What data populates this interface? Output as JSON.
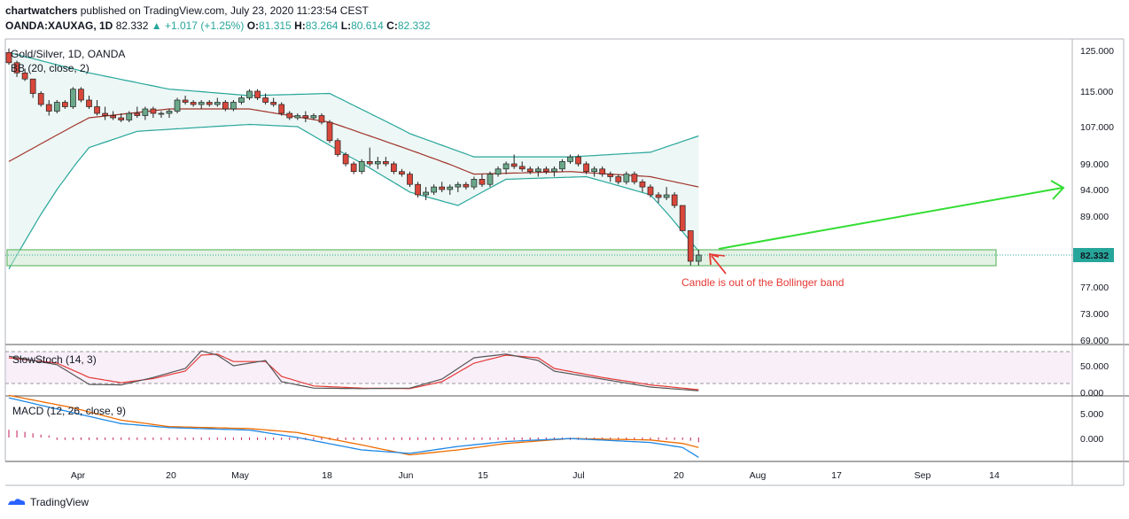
{
  "header": {
    "publisher": "chartwatchers",
    "published_text": "published on TradingView.com, July 23, 2020 11:23:54 CEST",
    "symbol": "OANDA:XAUXAG, 1D",
    "last": "82.332",
    "change": "▲ +1.017 (+1.25%)",
    "o_label": "O:",
    "o": "81.315",
    "h_label": "H:",
    "h": "83.264",
    "l_label": "L:",
    "l": "80.614",
    "c_label": "C:",
    "c": "82.332"
  },
  "footer": {
    "brand": "TradingView"
  },
  "chart_data": {
    "type": "candlestick",
    "title": "Gold/Silver, 1D, OANDA",
    "indicator_label": "BB (20, close, 2)",
    "x_ticks": [
      "Apr",
      "20",
      "May",
      "18",
      "Jun",
      "15",
      "Jul",
      "20",
      "Aug",
      "17",
      "Sep",
      "14"
    ],
    "y_ticks": [
      "125.000",
      "115.000",
      "107.000",
      "99.000",
      "94.000",
      "89.000",
      "82.332",
      "77.000",
      "73.000",
      "69.000"
    ],
    "ylim": [
      69,
      128
    ],
    "last_price_label": "82.332",
    "annotation": "Candle is out of the Bollinger band",
    "candles": [
      [
        124.5,
        125.5,
        121.5,
        122.0
      ],
      [
        122.0,
        122.5,
        118.5,
        119.5
      ],
      [
        119.5,
        120.5,
        117.5,
        118.0
      ],
      [
        118.0,
        118.0,
        113.5,
        114.5
      ],
      [
        114.5,
        115.0,
        111.5,
        112.0
      ],
      [
        112.0,
        113.0,
        109.5,
        110.5
      ],
      [
        110.5,
        113.0,
        110.0,
        112.5
      ],
      [
        112.5,
        113.0,
        111.0,
        111.5
      ],
      [
        111.5,
        116.0,
        111.0,
        115.5
      ],
      [
        115.5,
        116.0,
        112.5,
        113.0
      ],
      [
        113.0,
        114.0,
        111.0,
        111.5
      ],
      [
        111.5,
        113.0,
        109.5,
        110.0
      ],
      [
        110.0,
        111.5,
        108.5,
        109.5
      ],
      [
        109.5,
        110.5,
        108.5,
        109.0
      ],
      [
        109.0,
        110.0,
        108.0,
        108.5
      ],
      [
        108.5,
        110.5,
        108.0,
        110.0
      ],
      [
        110.0,
        111.5,
        109.0,
        109.5
      ],
      [
        109.5,
        111.5,
        108.5,
        111.0
      ],
      [
        111.0,
        111.5,
        109.0,
        110.0
      ],
      [
        110.0,
        110.5,
        109.0,
        110.0
      ],
      [
        110.0,
        111.0,
        109.0,
        110.5
      ],
      [
        110.5,
        113.5,
        110.0,
        113.0
      ],
      [
        113.0,
        114.0,
        112.0,
        112.5
      ],
      [
        112.5,
        113.0,
        111.5,
        112.0
      ],
      [
        112.0,
        113.0,
        111.0,
        112.5
      ],
      [
        112.5,
        113.0,
        111.5,
        112.0
      ],
      [
        112.0,
        113.5,
        111.5,
        112.5
      ],
      [
        112.5,
        113.0,
        110.5,
        111.0
      ],
      [
        111.0,
        113.0,
        110.5,
        112.5
      ],
      [
        112.5,
        114.0,
        112.0,
        113.5
      ],
      [
        113.5,
        115.5,
        113.0,
        115.0
      ],
      [
        115.0,
        115.5,
        113.0,
        113.5
      ],
      [
        113.5,
        114.5,
        112.0,
        112.5
      ],
      [
        112.5,
        113.5,
        111.5,
        112.0
      ],
      [
        112.0,
        112.5,
        109.5,
        110.0
      ],
      [
        110.0,
        110.5,
        108.5,
        109.0
      ],
      [
        109.0,
        110.0,
        108.5,
        109.5
      ],
      [
        109.5,
        110.5,
        108.0,
        109.0
      ],
      [
        109.0,
        110.0,
        108.5,
        109.5
      ],
      [
        109.5,
        110.0,
        107.5,
        108.0
      ],
      [
        108.0,
        108.5,
        103.5,
        104.0
      ],
      [
        104.0,
        104.5,
        100.5,
        101.0
      ],
      [
        101.0,
        101.5,
        98.5,
        99.0
      ],
      [
        99.0,
        99.5,
        97.0,
        97.5
      ],
      [
        97.5,
        100.0,
        97.0,
        99.5
      ],
      [
        99.5,
        102.5,
        98.5,
        99.0
      ],
      [
        99.0,
        100.5,
        98.0,
        99.5
      ],
      [
        99.5,
        100.5,
        98.5,
        99.0
      ],
      [
        99.0,
        99.5,
        97.0,
        97.5
      ],
      [
        97.5,
        98.0,
        96.5,
        97.0
      ],
      [
        97.0,
        97.5,
        94.5,
        95.0
      ],
      [
        95.0,
        95.5,
        92.5,
        93.0
      ],
      [
        93.0,
        94.5,
        92.0,
        93.5
      ],
      [
        93.5,
        95.0,
        93.0,
        94.5
      ],
      [
        94.5,
        95.5,
        93.5,
        94.0
      ],
      [
        94.0,
        95.0,
        93.0,
        94.5
      ],
      [
        94.5,
        95.5,
        93.5,
        95.0
      ],
      [
        95.0,
        95.5,
        94.0,
        94.5
      ],
      [
        94.5,
        96.5,
        94.0,
        96.0
      ],
      [
        96.0,
        97.0,
        94.5,
        95.0
      ],
      [
        95.0,
        97.5,
        94.5,
        97.0
      ],
      [
        97.0,
        98.5,
        96.5,
        98.0
      ],
      [
        98.0,
        99.5,
        97.0,
        99.0
      ],
      [
        99.0,
        101.0,
        98.0,
        98.5
      ],
      [
        98.5,
        99.5,
        97.5,
        98.0
      ],
      [
        98.0,
        98.5,
        97.0,
        97.5
      ],
      [
        97.5,
        98.5,
        96.5,
        98.0
      ],
      [
        98.0,
        98.5,
        97.0,
        97.5
      ],
      [
        97.5,
        98.5,
        96.5,
        98.0
      ],
      [
        98.0,
        100.0,
        97.5,
        99.5
      ],
      [
        99.5,
        101.0,
        99.0,
        100.5
      ],
      [
        100.5,
        101.0,
        98.5,
        99.0
      ],
      [
        99.0,
        99.5,
        97.0,
        97.5
      ],
      [
        97.5,
        98.5,
        96.5,
        98.0
      ],
      [
        98.0,
        98.5,
        96.5,
        97.0
      ],
      [
        97.0,
        97.5,
        95.5,
        96.5
      ],
      [
        96.5,
        97.0,
        95.0,
        95.5
      ],
      [
        95.5,
        97.5,
        95.0,
        97.0
      ],
      [
        97.0,
        97.5,
        95.0,
        95.5
      ],
      [
        95.5,
        96.0,
        93.5,
        94.5
      ],
      [
        94.5,
        95.0,
        92.5,
        93.0
      ],
      [
        93.0,
        93.5,
        91.5,
        92.5
      ],
      [
        92.5,
        94.5,
        92.0,
        93.0
      ],
      [
        93.0,
        93.5,
        90.5,
        91.0
      ],
      [
        91.0,
        91.0,
        86.5,
        86.5
      ],
      [
        86.5,
        86.5,
        80.6,
        81.3
      ],
      [
        81.3,
        83.26,
        80.61,
        82.332
      ]
    ],
    "bb_upper": [
      [
        0,
        124.5
      ],
      [
        10,
        119.5
      ],
      [
        20,
        115.5
      ],
      [
        30,
        114.0
      ],
      [
        40,
        114.5
      ],
      [
        50,
        105.5
      ],
      [
        58,
        100.5
      ],
      [
        70,
        100.5
      ],
      [
        80,
        101.5
      ],
      [
        86,
        105.0
      ]
    ],
    "bb_middle": [
      [
        0,
        99.5
      ],
      [
        10,
        109.0
      ],
      [
        20,
        111.0
      ],
      [
        30,
        111.0
      ],
      [
        40,
        108.0
      ],
      [
        50,
        102.0
      ],
      [
        58,
        97.0
      ],
      [
        70,
        97.5
      ],
      [
        80,
        96.5
      ],
      [
        86,
        94.5
      ]
    ],
    "bb_lower": [
      [
        0,
        80.0
      ],
      [
        6,
        94.0
      ],
      [
        10,
        102.5
      ],
      [
        16,
        106.0
      ],
      [
        30,
        107.5
      ],
      [
        36,
        107.0
      ],
      [
        42,
        101.0
      ],
      [
        50,
        93.5
      ],
      [
        56,
        91.0
      ],
      [
        62,
        96.0
      ],
      [
        72,
        96.5
      ],
      [
        80,
        93.0
      ],
      [
        86,
        83.0
      ]
    ],
    "support_zone": [
      80.6,
      83.8
    ],
    "trend_arrow": {
      "from": [
        89,
        83.3
      ],
      "to": [
        130,
        94.4
      ]
    },
    "slowstoch": {
      "label": "SlowStoch (14, 3)",
      "y_ticks": [
        "50.000",
        "0.000"
      ],
      "k": [
        [
          0,
          68
        ],
        [
          6,
          52
        ],
        [
          10,
          15
        ],
        [
          14,
          14
        ],
        [
          18,
          28
        ],
        [
          22,
          45
        ],
        [
          24,
          78
        ],
        [
          26,
          70
        ],
        [
          28,
          50
        ],
        [
          32,
          60
        ],
        [
          34,
          20
        ],
        [
          38,
          8
        ],
        [
          44,
          7
        ],
        [
          50,
          8
        ],
        [
          54,
          25
        ],
        [
          58,
          65
        ],
        [
          62,
          72
        ],
        [
          66,
          60
        ],
        [
          68,
          40
        ],
        [
          74,
          25
        ],
        [
          80,
          10
        ],
        [
          86,
          3
        ]
      ],
      "d": [
        [
          0,
          65
        ],
        [
          6,
          55
        ],
        [
          10,
          28
        ],
        [
          14,
          18
        ],
        [
          18,
          26
        ],
        [
          22,
          40
        ],
        [
          24,
          70
        ],
        [
          26,
          72
        ],
        [
          28,
          58
        ],
        [
          32,
          58
        ],
        [
          34,
          30
        ],
        [
          38,
          12
        ],
        [
          44,
          8
        ],
        [
          50,
          7
        ],
        [
          54,
          20
        ],
        [
          58,
          55
        ],
        [
          62,
          70
        ],
        [
          66,
          65
        ],
        [
          68,
          45
        ],
        [
          74,
          28
        ],
        [
          80,
          14
        ],
        [
          86,
          5
        ]
      ]
    },
    "macd": {
      "label": "MACD (12, 26, close, 9)",
      "y_ticks": [
        "5.000",
        "0.000"
      ],
      "macd_line": [
        [
          0,
          8.0
        ],
        [
          8,
          5.0
        ],
        [
          14,
          2.8
        ],
        [
          20,
          2.0
        ],
        [
          30,
          1.5
        ],
        [
          36,
          0
        ],
        [
          44,
          -2.5
        ],
        [
          50,
          -3.2
        ],
        [
          56,
          -1.8
        ],
        [
          62,
          -0.8
        ],
        [
          70,
          -0.2
        ],
        [
          80,
          -1.0
        ],
        [
          84,
          -2.0
        ],
        [
          86,
          -4.0
        ]
      ],
      "signal_line": [
        [
          0,
          8.5
        ],
        [
          8,
          6.0
        ],
        [
          14,
          3.5
        ],
        [
          20,
          2.2
        ],
        [
          30,
          1.8
        ],
        [
          36,
          1.0
        ],
        [
          44,
          -1.5
        ],
        [
          50,
          -3.5
        ],
        [
          56,
          -2.5
        ],
        [
          62,
          -1.2
        ],
        [
          70,
          -0.2
        ],
        [
          80,
          -0.5
        ],
        [
          84,
          -1.2
        ],
        [
          86,
          -2.0
        ]
      ],
      "histogram": [
        2.2,
        2.0,
        1.6,
        1.2,
        0.8,
        0.6,
        0.6,
        0.6,
        0.6,
        0.6,
        0.6,
        0.6,
        0.6,
        0.6,
        0.6,
        0.6,
        0.6,
        0.6,
        0.6,
        0.6,
        0.6,
        0.6,
        0.6,
        0.6,
        0.6,
        0.6,
        0.6,
        0.6,
        0.6,
        0.6,
        0.6,
        0.6,
        0.6,
        0.6,
        0.6,
        0.6,
        0.6,
        0.6,
        0.6,
        0.6,
        0.6,
        0.6,
        0.6,
        0.6,
        0.6,
        0.6,
        0.6,
        0.6,
        0.6,
        0.6,
        0.6,
        0.6,
        0.6,
        0.6,
        0.6,
        0.6,
        0.6,
        0.6,
        0.6,
        0.6,
        0.6,
        0.6,
        0.6,
        0.6,
        0.6,
        0.6,
        0.6,
        0.6,
        0.6,
        0.6,
        0.6,
        0.6,
        0.6,
        0.6,
        0.6,
        0.6,
        0.6,
        0.6,
        0.6,
        0.6,
        0.6,
        0.6,
        0.6,
        0.6,
        0.6,
        0.8,
        1.2
      ],
      "histogram_colors": [
        "#ef5350",
        "#ef5350",
        "#ef5350",
        "#ef5350",
        "#ef5350",
        "#ef5350"
      ]
    }
  }
}
